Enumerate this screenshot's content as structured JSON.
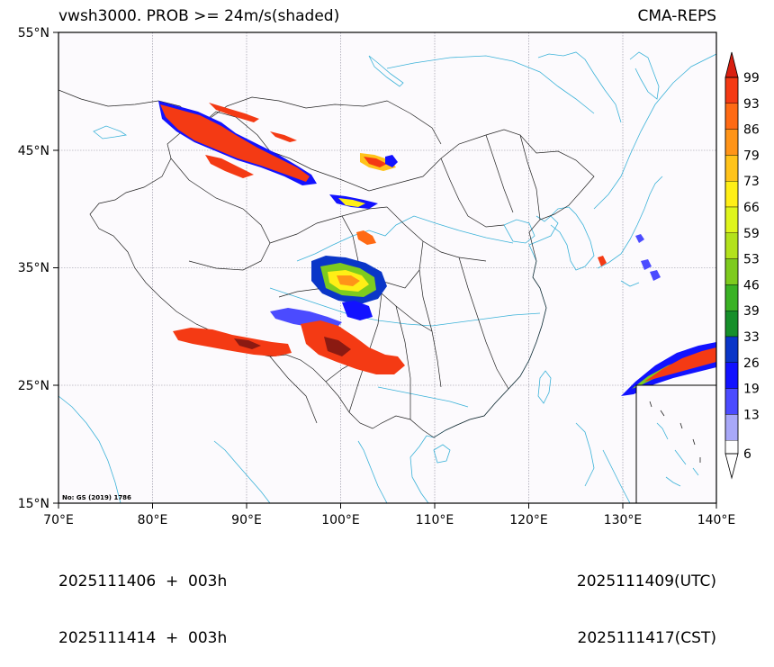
{
  "header": {
    "title": "vwsh3000. PROB >= 24m/s(shaded)",
    "model": "CMA-REPS"
  },
  "map": {
    "lat_ticks": [
      "55°N",
      "45°N",
      "35°N",
      "25°N",
      "15°N"
    ],
    "lon_ticks": [
      "70°E",
      "80°E",
      "90°E",
      "100°E",
      "110°E",
      "120°E",
      "130°E",
      "140°E"
    ],
    "extent": {
      "lon_min": 70,
      "lon_max": 140,
      "lat_min": 15,
      "lat_max": 55
    },
    "map_note": "No: GS (2019) 1786",
    "colors": {
      "coast": "#3bb2d8",
      "border": "#222222",
      "grid": "#8a8a9a"
    }
  },
  "colorbar": {
    "levels": [
      "99",
      "93",
      "86",
      "79",
      "73",
      "66",
      "59",
      "53",
      "46",
      "39",
      "33",
      "26",
      "19",
      "13",
      "6"
    ],
    "colors": [
      "#d91f10",
      "#f43a14",
      "#ff6a14",
      "#ff9418",
      "#ffc31a",
      "#ffef16",
      "#dff51c",
      "#b3e21c",
      "#7ecb1e",
      "#3ab224",
      "#168f2a",
      "#0a36c8",
      "#1212ff",
      "#4b4bff",
      "#a8a8f8"
    ]
  },
  "footer": {
    "init_utc": "2025111406  +  003h",
    "init_cst": "2025111414  +  003h",
    "valid_utc": "2025111409(UTC)",
    "valid_cst": "2025111417(CST)"
  }
}
